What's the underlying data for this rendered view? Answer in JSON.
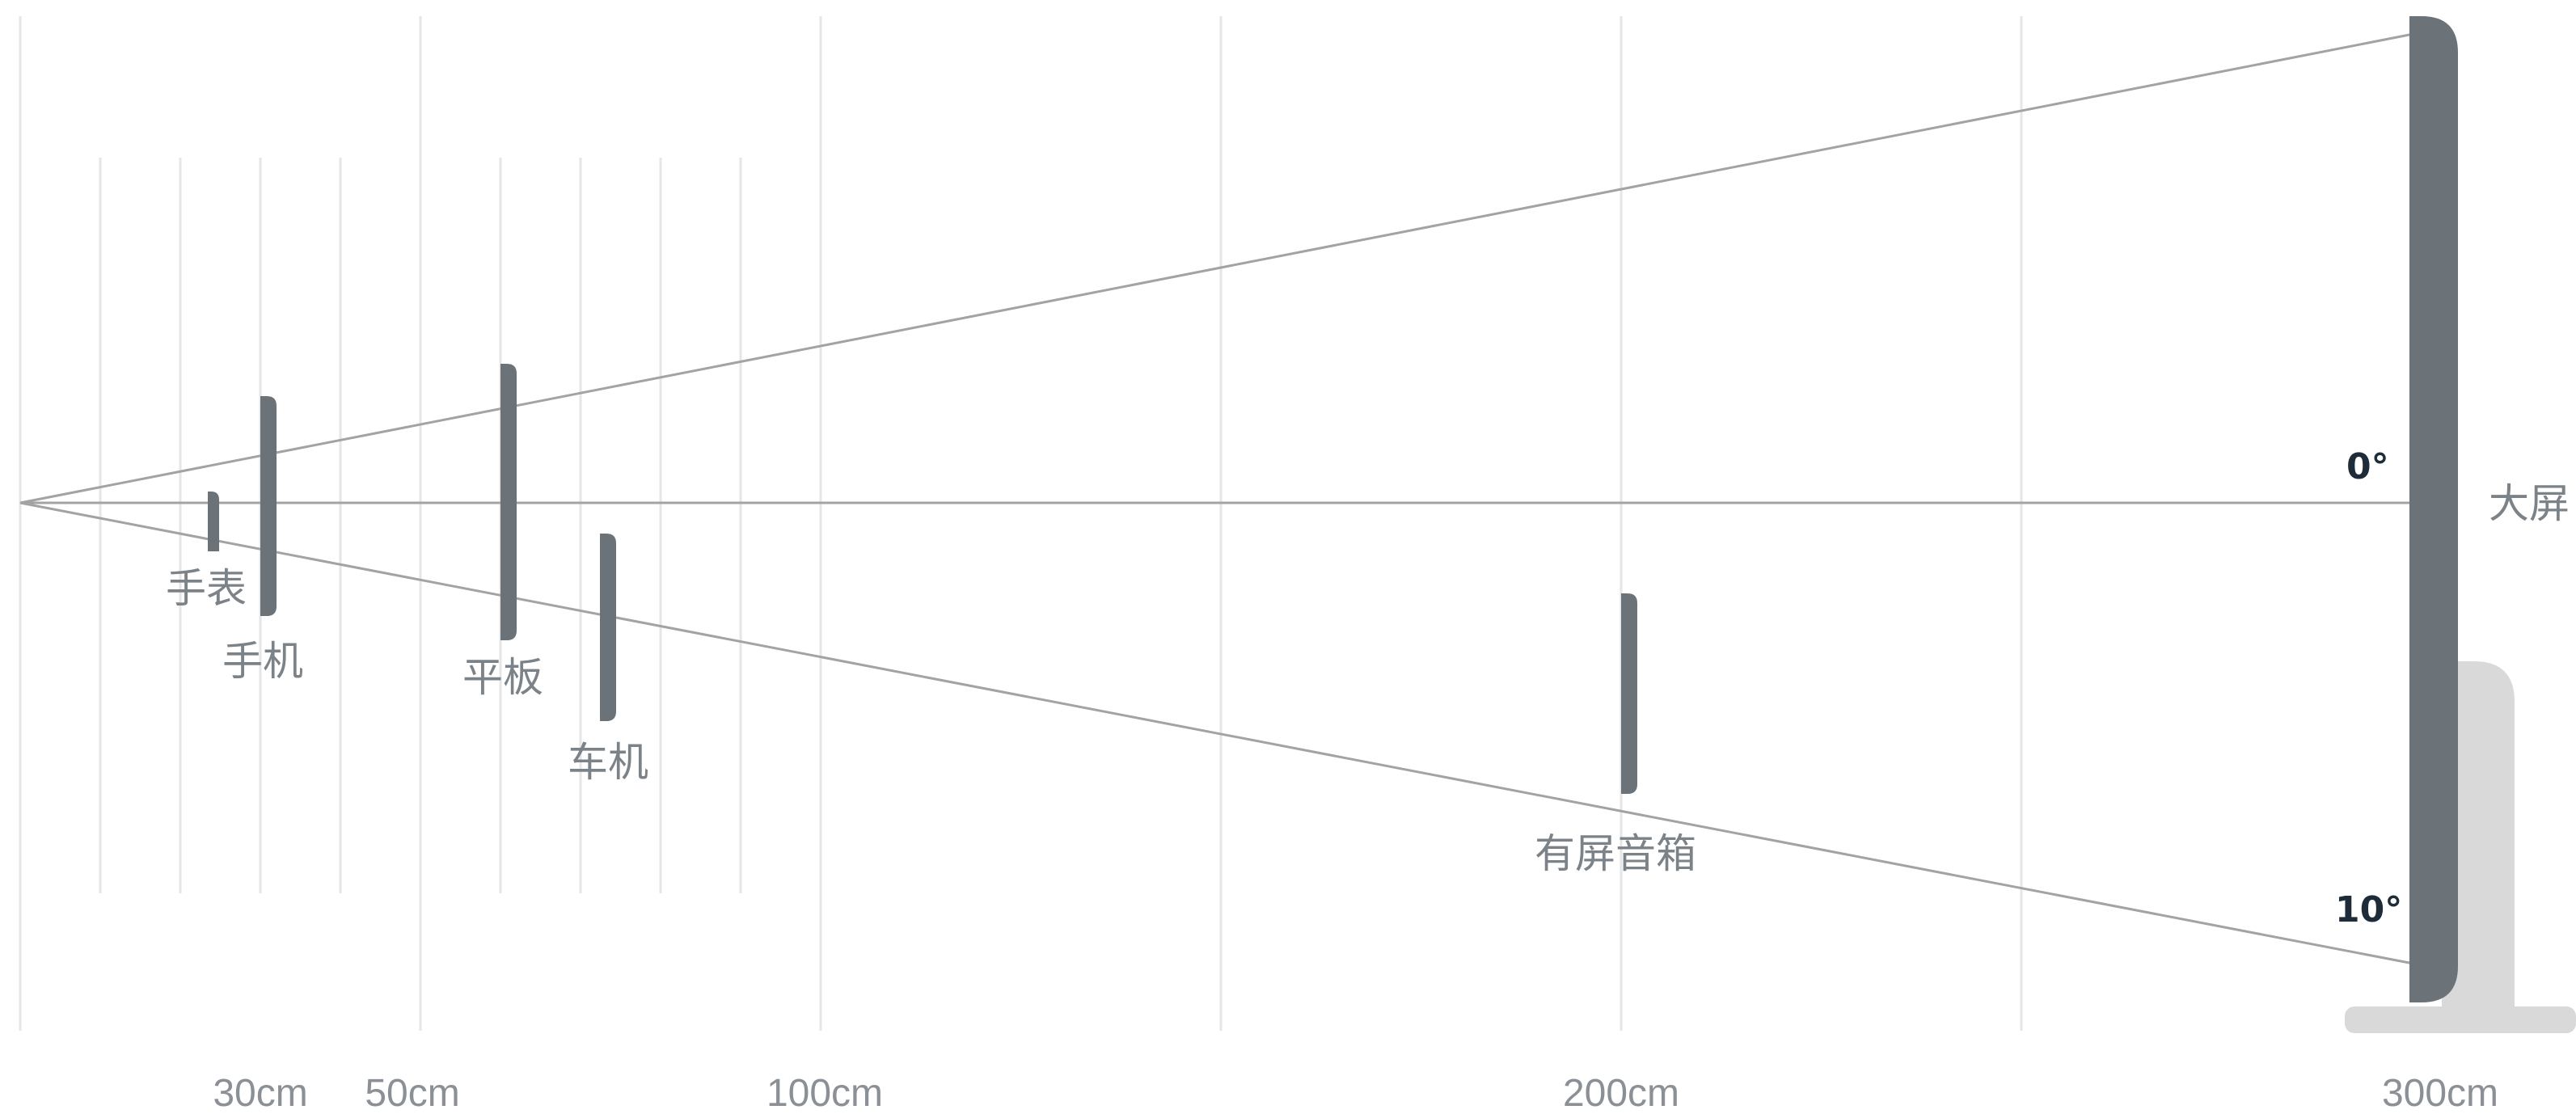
{
  "axis": {
    "ticks": [
      "30cm",
      "50cm",
      "100cm",
      "200cm",
      "300cm"
    ]
  },
  "angles": {
    "zero": "0°",
    "ten": "10°"
  },
  "devices": {
    "watch": "手表",
    "phone": "手机",
    "tablet": "平板",
    "car": "车机",
    "speaker": "有屏音箱",
    "tv": "大屏"
  },
  "colors": {
    "device": "#6b7378",
    "guide": "#a3a3a3",
    "grid": "#e6e6e6",
    "stand": "#d9d9d9",
    "angle_text": "#1e2c3a",
    "label_text": "#7b8288"
  }
}
